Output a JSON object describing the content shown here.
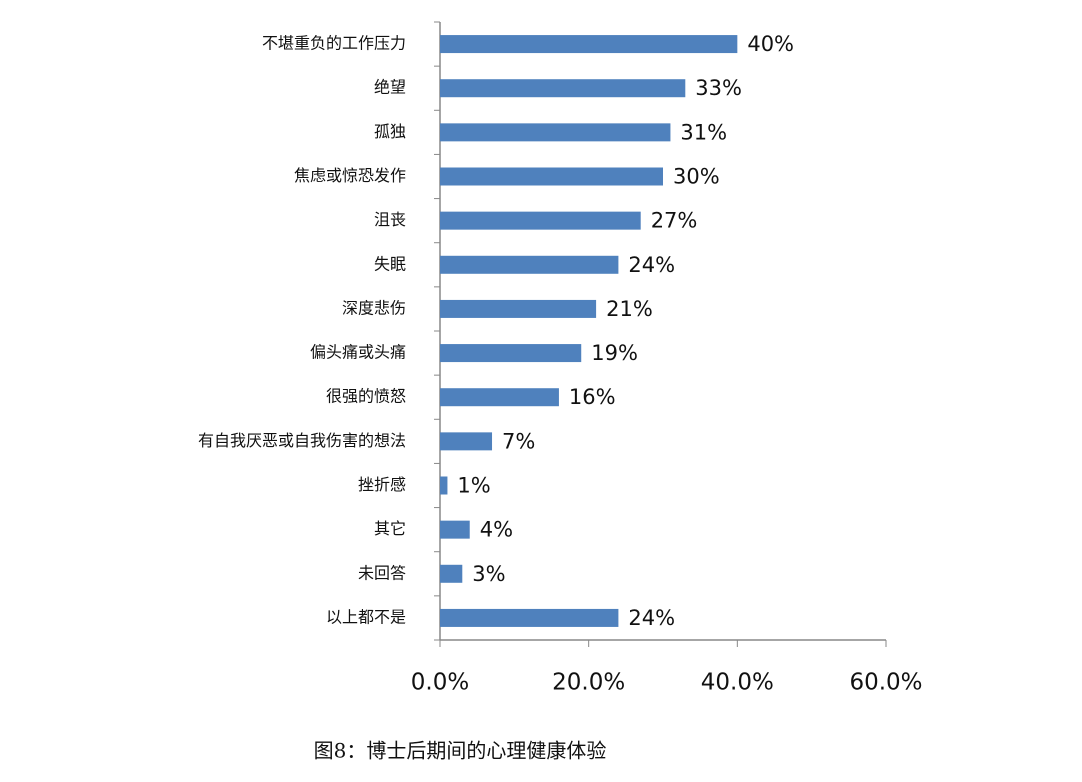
{
  "chart_data": {
    "type": "hbar",
    "caption": "图8：博士后期间的心理健康体验",
    "categories": [
      "不堪重负的工作压力",
      "绝望",
      "孤独",
      "焦虑或惊恐发作",
      "沮丧",
      "失眠",
      "深度悲伤",
      "偏头痛或头痛",
      "很强的愤怒",
      "有自我厌恶或自我伤害的想法",
      "挫折感",
      "其它",
      "未回答",
      "以上都不是"
    ],
    "values": [
      40,
      33,
      31,
      30,
      27,
      24,
      21,
      19,
      16,
      7,
      1,
      4,
      3,
      24
    ],
    "value_labels": [
      "40%",
      "33%",
      "31%",
      "30%",
      "27%",
      "24%",
      "21%",
      "19%",
      "16%",
      "7%",
      "1%",
      "4%",
      "3%",
      "24%"
    ],
    "color": "#4f81bd",
    "xlim": [
      0,
      60
    ],
    "xticks": [
      {
        "value": 0,
        "label": "0.0%"
      },
      {
        "value": 20,
        "label": "20.0%"
      },
      {
        "value": 40,
        "label": "40.0%"
      },
      {
        "value": 60,
        "label": "60.0%"
      }
    ]
  }
}
